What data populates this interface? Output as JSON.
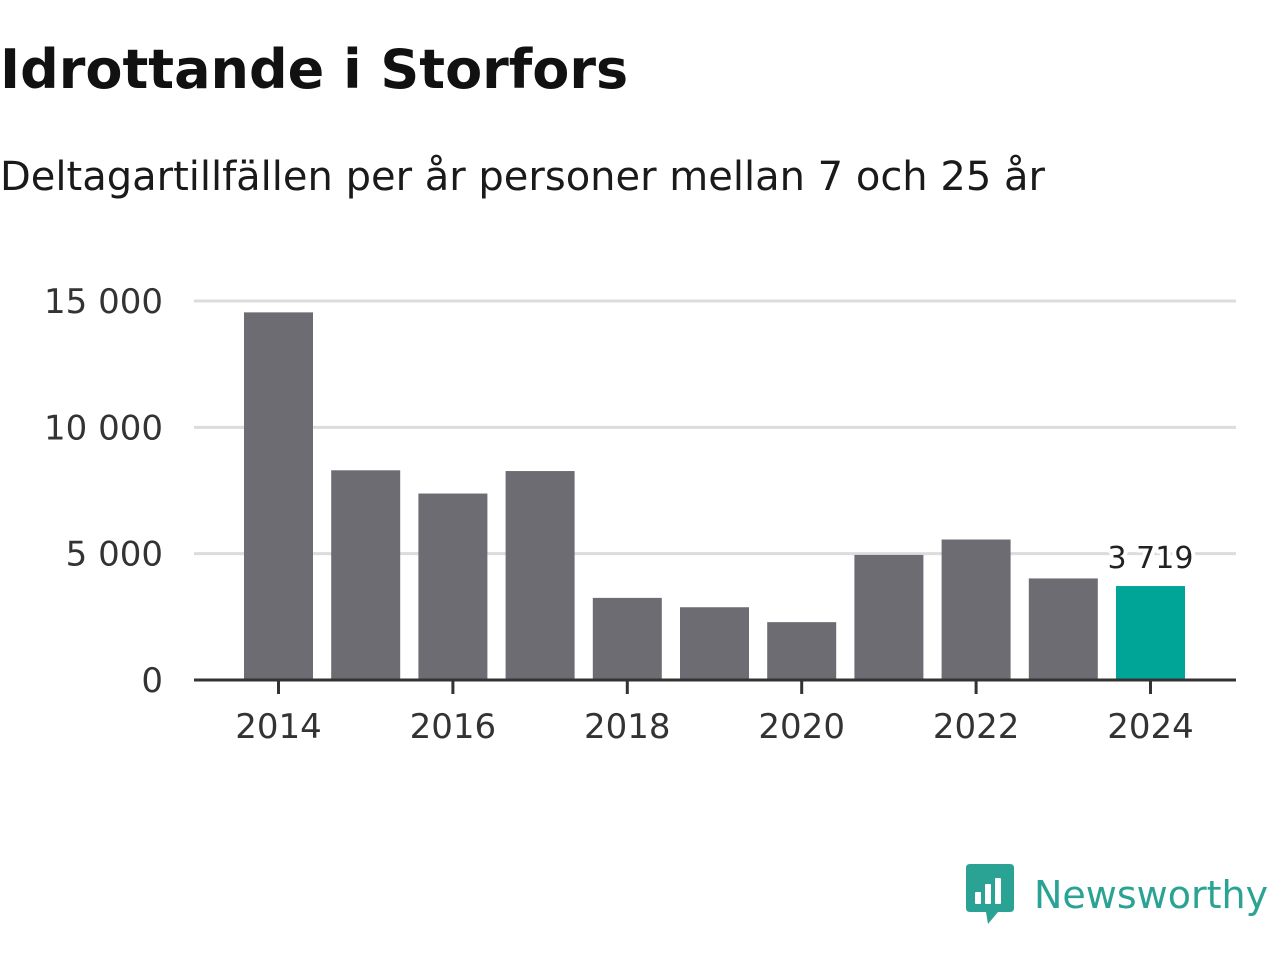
{
  "title": "Idrottande i Storfors",
  "subtitle": "Deltagartillfällen per år personer mellan 7 och 25 år",
  "brand": "Newsworthy",
  "colors": {
    "bar": "#6d6c73",
    "highlight": "#00a598",
    "grid": "#dcdcdc",
    "axis": "#333333",
    "brand": "#2aa394"
  },
  "chart_data": {
    "type": "bar",
    "title": "Idrottande i Storfors",
    "subtitle": "Deltagartillfällen per år personer mellan 7 och 25 år",
    "categories": [
      2014,
      2015,
      2016,
      2017,
      2018,
      2019,
      2020,
      2021,
      2022,
      2023,
      2024
    ],
    "values": [
      14550,
      8300,
      7380,
      8270,
      3250,
      2880,
      2290,
      4950,
      5560,
      4020,
      3719
    ],
    "highlight_index": 10,
    "data_label": "3 719",
    "x_ticks": [
      "2014",
      "2016",
      "2018",
      "2020",
      "2022",
      "2024"
    ],
    "x_tick_values": [
      2014,
      2016,
      2018,
      2020,
      2022,
      2024
    ],
    "y_ticks": [
      "0",
      "5 000",
      "10 000",
      "15 000"
    ],
    "y_tick_values": [
      0,
      5000,
      10000,
      15000
    ],
    "ylim": [
      0,
      15000
    ],
    "grid": true,
    "xlabel": "",
    "ylabel": ""
  }
}
